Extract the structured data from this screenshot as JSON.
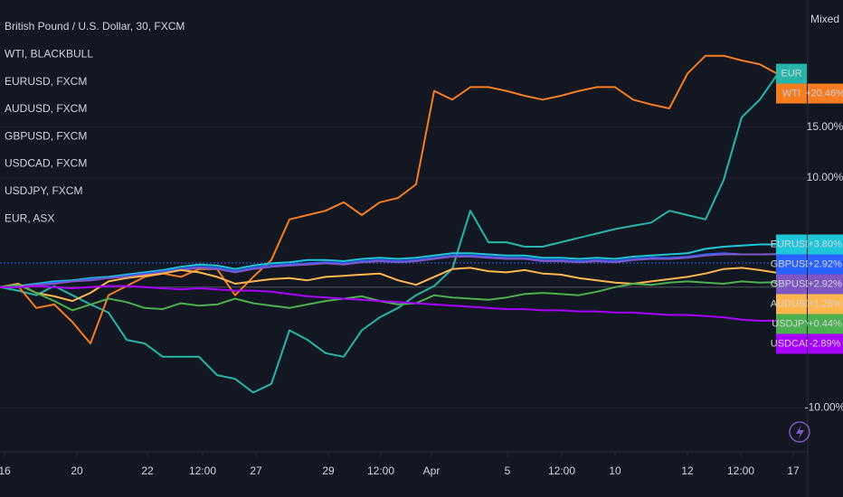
{
  "chart_data": {
    "type": "line",
    "scale_label": "Mixed",
    "log_scale": true,
    "grid": true,
    "legend": [
      "British Pound / U.S. Dollar, 30, FXCM",
      "WTI, BLACKBULL",
      "EURUSD, FXCM",
      "AUDUSD, FXCM",
      "GBPUSD, FXCM",
      "USDCAD, FXCM",
      "USDJPY, FXCM",
      "EUR, ASX"
    ],
    "xlim": [
      0,
      44.65
    ],
    "xticks": [
      {
        "value": 0.25,
        "label": "16"
      },
      {
        "value": 4.25,
        "label": "20"
      },
      {
        "value": 8.15,
        "label": "22"
      },
      {
        "value": 11.2,
        "label": "12:00"
      },
      {
        "value": 14.15,
        "label": "27"
      },
      {
        "value": 18.15,
        "label": "29"
      },
      {
        "value": 21.05,
        "label": "12:00"
      },
      {
        "value": 23.85,
        "label": "Apr"
      },
      {
        "value": 28.05,
        "label": "5"
      },
      {
        "value": 31.05,
        "label": "12:00"
      },
      {
        "value": 34,
        "label": "10"
      },
      {
        "value": 38,
        "label": "12"
      },
      {
        "value": 40.95,
        "label": "12:00"
      },
      {
        "value": 43.85,
        "label": "17"
      }
    ],
    "ylim": [
      -13.4,
      27
    ],
    "yticks": [
      {
        "value": 15,
        "label": "15.00%"
      },
      {
        "value": 10,
        "label": "10.00%"
      },
      {
        "value": -10,
        "label": "-10.00%"
      }
    ],
    "series": [
      {
        "name": "EUR",
        "color": "#26b5a8",
        "values": [
          0,
          -0.3,
          -0.7,
          0.1,
          -0.7,
          -1.5,
          -2.2,
          -4.5,
          -4.8,
          -5.9,
          -5.9,
          -5.9,
          -7.4,
          -7.7,
          -8.8,
          -8.1,
          -3.7,
          -4.5,
          -5.6,
          -5.9,
          -3.7,
          -2.6,
          -1.8,
          -0.7,
          0.1,
          1.6,
          6.9,
          4.0,
          4.0,
          3.6,
          3.6,
          4.0,
          4.4,
          4.8,
          5.2,
          5.5,
          5.8,
          6.9,
          6.5,
          6.1,
          9.8,
          16.0,
          17.8,
          20.5
        ]
      },
      {
        "name": "WTI",
        "color": "#f57c1f",
        "end_label": "+20.46%",
        "values": [
          0,
          0.1,
          -1.8,
          -1.5,
          -3.0,
          -4.8,
          -0.7,
          0.1,
          0.9,
          1.2,
          0.9,
          1.6,
          1.6,
          -0.7,
          0.9,
          2.4,
          6.1,
          6.5,
          6.9,
          7.7,
          6.5,
          7.7,
          8.1,
          9.4,
          18.7,
          17.8,
          19.1,
          19.1,
          18.7,
          18.2,
          17.8,
          18.2,
          18.7,
          19.1,
          19.1,
          17.8,
          17.3,
          16.9,
          20.5,
          22.4,
          22.4,
          21.9,
          21.5,
          20.46
        ]
      },
      {
        "name": "EURUSD",
        "color": "#1ec6d9",
        "end_label": "+3.80%",
        "values": [
          0,
          0.1,
          0.3,
          0.5,
          0.6,
          0.8,
          0.9,
          1.1,
          1.3,
          1.5,
          1.8,
          2.0,
          1.9,
          1.6,
          1.9,
          2.1,
          2.2,
          2.4,
          2.4,
          2.3,
          2.5,
          2.6,
          2.5,
          2.6,
          2.8,
          3.0,
          3.0,
          2.9,
          2.8,
          2.8,
          2.6,
          2.6,
          2.5,
          2.6,
          2.5,
          2.7,
          2.8,
          2.9,
          3.0,
          3.4,
          3.6,
          3.7,
          3.8,
          3.8
        ]
      },
      {
        "name": "GBPUSD",
        "color": "#2962ff",
        "end_label": "+2.92%",
        "values": [
          0,
          0.0,
          0.2,
          0.4,
          0.5,
          0.7,
          0.8,
          1.0,
          1.2,
          1.4,
          1.6,
          1.8,
          1.7,
          1.4,
          1.7,
          1.9,
          2.0,
          2.1,
          2.2,
          2.1,
          2.3,
          2.4,
          2.3,
          2.4,
          2.6,
          2.8,
          2.8,
          2.7,
          2.6,
          2.6,
          2.4,
          2.4,
          2.3,
          2.4,
          2.3,
          2.5,
          2.6,
          2.6,
          2.7,
          2.9,
          3.0,
          2.9,
          2.9,
          2.92
        ]
      },
      {
        "name": "GBPUSD",
        "color": "#7e57c2",
        "end_label": "+2.92%",
        "values": [
          0,
          0.0,
          0.2,
          0.3,
          0.5,
          0.6,
          0.8,
          0.9,
          1.1,
          1.3,
          1.5,
          1.7,
          1.6,
          1.3,
          1.6,
          1.8,
          1.9,
          2.0,
          2.1,
          2.0,
          2.2,
          2.3,
          2.2,
          2.3,
          2.5,
          2.7,
          2.7,
          2.6,
          2.5,
          2.5,
          2.3,
          2.3,
          2.2,
          2.3,
          2.2,
          2.4,
          2.5,
          2.5,
          2.6,
          2.8,
          2.9,
          2.9,
          2.9,
          2.92
        ]
      },
      {
        "name": "AUDUSD",
        "color": "#ffb74d",
        "end_label": "+1.25%",
        "values": [
          0,
          0.3,
          -0.5,
          -0.8,
          -1.2,
          -0.5,
          0.5,
          0.8,
          1.0,
          1.2,
          1.5,
          1.3,
          0.9,
          0.3,
          0.5,
          0.7,
          0.8,
          0.6,
          0.9,
          1.0,
          1.1,
          1.2,
          0.6,
          0.2,
          0.9,
          1.6,
          1.7,
          1.4,
          1.3,
          1.5,
          1.2,
          1.1,
          0.8,
          0.6,
          0.4,
          0.3,
          0.5,
          0.7,
          0.9,
          1.2,
          1.6,
          1.7,
          1.5,
          1.25
        ]
      },
      {
        "name": "USDJPY",
        "color": "#4caf50",
        "end_label": "+0.44%",
        "values": [
          0,
          0.2,
          -0.5,
          -1.2,
          -2.0,
          -1.5,
          -1.0,
          -1.3,
          -1.8,
          -1.9,
          -1.4,
          -1.6,
          -1.5,
          -1.0,
          -1.4,
          -1.6,
          -1.8,
          -1.5,
          -1.2,
          -1.0,
          -0.8,
          -1.2,
          -1.5,
          -1.4,
          -0.7,
          -0.9,
          -1.0,
          -1.1,
          -0.9,
          -0.6,
          -0.5,
          -0.6,
          -0.7,
          -0.4,
          0.0,
          0.3,
          0.2,
          0.4,
          0.5,
          0.4,
          0.3,
          0.5,
          0.4,
          0.44
        ]
      },
      {
        "name": "USDCAD",
        "color": "#aa00ff",
        "end_label": "-2.89%",
        "values": [
          0,
          0,
          0.1,
          0.0,
          -0.1,
          0,
          0.1,
          0.1,
          0.0,
          -0.1,
          -0.2,
          -0.1,
          -0.2,
          -0.3,
          -0.3,
          -0.4,
          -0.6,
          -0.8,
          -0.9,
          -1.0,
          -1.1,
          -1.2,
          -1.3,
          -1.4,
          -1.5,
          -1.6,
          -1.7,
          -1.8,
          -1.9,
          -1.9,
          -2.0,
          -2.0,
          -2.1,
          -2.1,
          -2.2,
          -2.2,
          -2.3,
          -2.4,
          -2.4,
          -2.5,
          -2.6,
          -2.8,
          -2.9,
          -2.89
        ]
      }
    ]
  }
}
